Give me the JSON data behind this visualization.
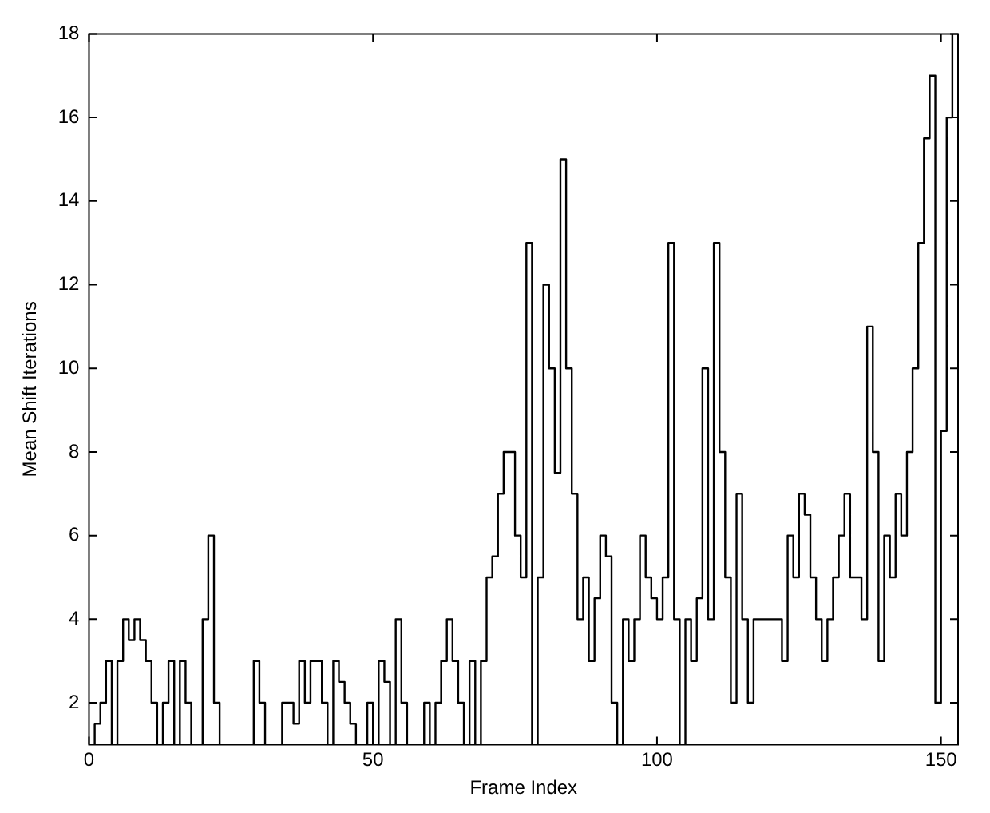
{
  "chart_data": {
    "type": "step",
    "xlabel": "Frame Index",
    "ylabel": "Mean Shift Iterations",
    "x": [
      0,
      1,
      2,
      3,
      4,
      5,
      6,
      7,
      8,
      9,
      10,
      11,
      12,
      13,
      14,
      15,
      16,
      17,
      18,
      19,
      20,
      21,
      22,
      23,
      24,
      25,
      26,
      27,
      28,
      29,
      30,
      31,
      32,
      33,
      34,
      35,
      36,
      37,
      38,
      39,
      40,
      41,
      42,
      43,
      44,
      45,
      46,
      47,
      48,
      49,
      50,
      51,
      52,
      53,
      54,
      55,
      56,
      57,
      58,
      59,
      60,
      61,
      62,
      63,
      64,
      65,
      66,
      67,
      68,
      69,
      70,
      71,
      72,
      73,
      74,
      75,
      76,
      77,
      78,
      79,
      80,
      81,
      82,
      83,
      84,
      85,
      86,
      87,
      88,
      89,
      90,
      91,
      92,
      93,
      94,
      95,
      96,
      97,
      98,
      99,
      100,
      101,
      102,
      103,
      104,
      105,
      106,
      107,
      108,
      109,
      110,
      111,
      112,
      113,
      114,
      115,
      116,
      117,
      118,
      119,
      120,
      121,
      122,
      123,
      124,
      125,
      126,
      127,
      128,
      129,
      130,
      131,
      132,
      133,
      134,
      135,
      136,
      137,
      138,
      139,
      140,
      141,
      142,
      143,
      144,
      145,
      146,
      147,
      148,
      149,
      150,
      151,
      152
    ],
    "series": [
      {
        "color": "#000000",
        "values": [
          1,
          1.5,
          2,
          3,
          1,
          3,
          4,
          3.5,
          4,
          3.5,
          3,
          2,
          1,
          2,
          3,
          1,
          3,
          2,
          1,
          1,
          4,
          6,
          2,
          1,
          1,
          1,
          1,
          1,
          1,
          3,
          2,
          1,
          1,
          1,
          2,
          2,
          1.5,
          3,
          2,
          3,
          3,
          2,
          1,
          3,
          2.5,
          2,
          1.5,
          1,
          1,
          2,
          1,
          3,
          2.5,
          1,
          4,
          2,
          1,
          1,
          1,
          2,
          1,
          2,
          3,
          4,
          3,
          2,
          1,
          3,
          1,
          3,
          5,
          5.5,
          7,
          8,
          8,
          6,
          5,
          13,
          1,
          5,
          12,
          10,
          7.5,
          15,
          10,
          7,
          4,
          5,
          3,
          4.5,
          6,
          5.5,
          2,
          1,
          4,
          3,
          4,
          6,
          5,
          4.5,
          4,
          5,
          13,
          4,
          1,
          4,
          3,
          4.5,
          10,
          4,
          13,
          8,
          5,
          2,
          7,
          4,
          2,
          4,
          4,
          4,
          4,
          4,
          3,
          6,
          5,
          7,
          6.5,
          5,
          4,
          3,
          4,
          5,
          6,
          7,
          5,
          5,
          4,
          11,
          8,
          3,
          6,
          5,
          7,
          6,
          8,
          10,
          13,
          15.5,
          17,
          2,
          8.5,
          16,
          18
        ]
      }
    ],
    "xlim": [
      0,
      153
    ],
    "ylim": [
      1,
      18
    ],
    "xticks": [
      0,
      50,
      100,
      150
    ],
    "yticks": [
      2,
      4,
      6,
      8,
      10,
      12,
      14,
      16,
      18
    ],
    "line_style": "solid"
  }
}
